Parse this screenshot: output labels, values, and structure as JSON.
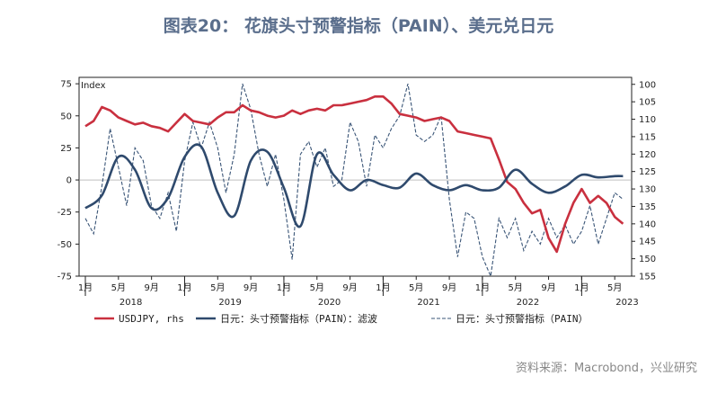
{
  "title": "图表20： 花旗头寸预警指标（PAIN）、美元兑日元",
  "source": "资料来源：Macrobond，兴业研究",
  "chart_data": {
    "type": "line",
    "index_label": "Index",
    "left_axis": {
      "ylim": [
        -75,
        80
      ],
      "ticks": [
        75,
        50,
        25,
        0,
        -25,
        -50,
        -75
      ]
    },
    "right_axis": {
      "ylim": [
        155,
        98
      ],
      "ticks": [
        100,
        105,
        110,
        115,
        120,
        125,
        130,
        135,
        140,
        145,
        150,
        155
      ],
      "inverted": true
    },
    "month_ticks": [
      "1月",
      "5月",
      "9月",
      "1月",
      "5月",
      "9月",
      "1月",
      "5月",
      "9月",
      "1月",
      "5月",
      "9月",
      "1月",
      "5月",
      "9月",
      "1月",
      "5月"
    ],
    "year_labels": [
      "2018",
      "2019",
      "2020",
      "2021",
      "2022",
      "2023"
    ],
    "legend": [
      "USDJPY, rhs",
      "日元：头寸预警指标（PAIN）：滤波",
      "日元：头寸预警指标（PAIN）"
    ],
    "colors": {
      "usdjpy": "#c9303f",
      "filtered": "#2f4a6d",
      "pain": "#3a5577"
    },
    "series": [
      {
        "name": "USDJPY, rhs",
        "axis": "right",
        "x": [
          "2018-01",
          "2018-02",
          "2018-03",
          "2018-04",
          "2018-05",
          "2018-06",
          "2018-07",
          "2018-08",
          "2018-09",
          "2018-10",
          "2018-11",
          "2018-12",
          "2019-01",
          "2019-02",
          "2019-03",
          "2019-04",
          "2019-05",
          "2019-06",
          "2019-07",
          "2019-08",
          "2019-09",
          "2019-10",
          "2019-11",
          "2019-12",
          "2020-01",
          "2020-02",
          "2020-03",
          "2020-04",
          "2020-05",
          "2020-06",
          "2020-07",
          "2020-08",
          "2020-09",
          "2020-10",
          "2020-11",
          "2020-12",
          "2021-01",
          "2021-02",
          "2021-03",
          "2021-04",
          "2021-05",
          "2021-06",
          "2021-07",
          "2021-08",
          "2021-09",
          "2021-10",
          "2021-11",
          "2021-12",
          "2022-01",
          "2022-02",
          "2022-03",
          "2022-04",
          "2022-05",
          "2022-06",
          "2022-07",
          "2022-08",
          "2022-09",
          "2022-10",
          "2022-11",
          "2022-12",
          "2023-01",
          "2023-02",
          "2023-03",
          "2023-04",
          "2023-05",
          "2023-06"
        ],
        "values": [
          112,
          110.5,
          106.5,
          107.5,
          109.5,
          110.5,
          111.5,
          111,
          112,
          112.5,
          113.5,
          111,
          108.5,
          110.5,
          111,
          111.5,
          109.5,
          108,
          108,
          106,
          107.5,
          108,
          109,
          109.5,
          109,
          107.5,
          108.5,
          107.5,
          107,
          107.5,
          106,
          106,
          105.5,
          105,
          104.5,
          103.5,
          103.5,
          105.5,
          108.5,
          109,
          109.5,
          110.5,
          110,
          109.5,
          110.5,
          113.5,
          114,
          114.5,
          115,
          115.5,
          121.5,
          128,
          130,
          134,
          137,
          136,
          144,
          148,
          140,
          134,
          130,
          134,
          132,
          134,
          138,
          140
        ]
      },
      {
        "name": "日元：头寸预警指标（PAIN）：滤波",
        "axis": "left",
        "x": [
          "2018-01",
          "2018-03",
          "2018-05",
          "2018-07",
          "2018-09",
          "2018-11",
          "2019-01",
          "2019-03",
          "2019-05",
          "2019-07",
          "2019-09",
          "2019-11",
          "2020-01",
          "2020-03",
          "2020-05",
          "2020-07",
          "2020-09",
          "2020-11",
          "2021-01",
          "2021-03",
          "2021-05",
          "2021-07",
          "2021-09",
          "2021-11",
          "2022-01",
          "2022-03",
          "2022-05",
          "2022-07",
          "2022-09",
          "2022-11",
          "2023-01",
          "2023-03",
          "2023-05",
          "2023-06"
        ],
        "values": [
          -22,
          -12,
          18,
          8,
          -22,
          -14,
          18,
          26,
          -10,
          -28,
          15,
          22,
          -6,
          -36,
          20,
          4,
          -8,
          0,
          -4,
          -6,
          5,
          -4,
          -8,
          -4,
          -8,
          -6,
          8,
          -3,
          -10,
          -5,
          4,
          2,
          3,
          3
        ]
      },
      {
        "name": "日元：头寸预警指标（PAIN）",
        "axis": "left",
        "x": [
          "2018-01",
          "2018-02",
          "2018-03",
          "2018-04",
          "2018-05",
          "2018-06",
          "2018-07",
          "2018-08",
          "2018-09",
          "2018-10",
          "2018-11",
          "2018-12",
          "2019-01",
          "2019-02",
          "2019-03",
          "2019-04",
          "2019-05",
          "2019-06",
          "2019-07",
          "2019-08",
          "2019-09",
          "2019-10",
          "2019-11",
          "2019-12",
          "2020-01",
          "2020-02",
          "2020-03",
          "2020-04",
          "2020-05",
          "2020-06",
          "2020-07",
          "2020-08",
          "2020-09",
          "2020-10",
          "2020-11",
          "2020-12",
          "2021-01",
          "2021-02",
          "2021-03",
          "2021-04",
          "2021-05",
          "2021-06",
          "2021-07",
          "2021-08",
          "2021-09",
          "2021-10",
          "2021-11",
          "2021-12",
          "2022-01",
          "2022-02",
          "2022-03",
          "2022-04",
          "2022-05",
          "2022-06",
          "2022-07",
          "2022-08",
          "2022-09",
          "2022-10",
          "2022-11",
          "2022-12",
          "2023-01",
          "2023-02",
          "2023-03",
          "2023-04",
          "2023-05",
          "2023-06"
        ],
        "values": [
          -30,
          -42,
          -5,
          40,
          10,
          -20,
          25,
          15,
          -20,
          -30,
          -10,
          -40,
          15,
          45,
          25,
          45,
          25,
          -10,
          20,
          75,
          55,
          20,
          -5,
          20,
          -15,
          -62,
          20,
          30,
          10,
          25,
          -5,
          0,
          45,
          30,
          -5,
          35,
          25,
          40,
          50,
          75,
          35,
          30,
          35,
          50,
          -15,
          -60,
          -25,
          -30,
          -60,
          -75,
          -30,
          -45,
          -30,
          -55,
          -40,
          -50,
          -30,
          -45,
          -35,
          -50,
          -40,
          -20,
          -50,
          -30,
          -10,
          -15
        ]
      }
    ]
  }
}
